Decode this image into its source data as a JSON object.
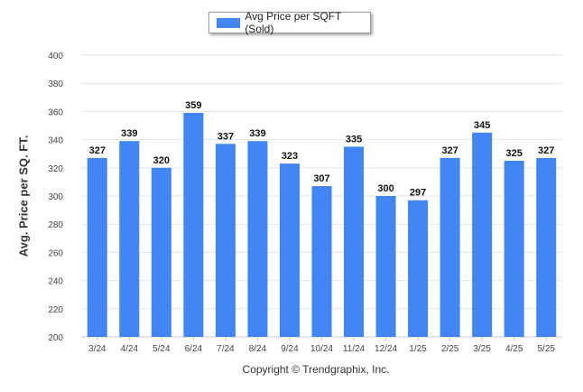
{
  "chart_data": {
    "type": "bar",
    "categories": [
      "3/24",
      "4/24",
      "5/24",
      "6/24",
      "7/24",
      "8/24",
      "9/24",
      "10/24",
      "11/24",
      "12/24",
      "1/25",
      "2/25",
      "3/25",
      "4/25",
      "5/25"
    ],
    "series": [
      {
        "name": "Avg Price per SQFT (Sold)",
        "values": [
          327,
          339,
          320,
          359,
          337,
          339,
          323,
          307,
          335,
          300,
          297,
          327,
          345,
          325,
          327
        ]
      }
    ],
    "ylabel": "Avg. Price per SQ. FT.",
    "xlabel": "",
    "ylim": [
      200,
      400
    ],
    "yticks": [
      200,
      220,
      240,
      260,
      280,
      300,
      320,
      340,
      360,
      380,
      400
    ],
    "grid": true,
    "legend": "top-center",
    "data_labels": true,
    "bar_color": "#4285f4"
  },
  "footer": {
    "copyright": "Copyright © Trendgraphix, Inc."
  }
}
